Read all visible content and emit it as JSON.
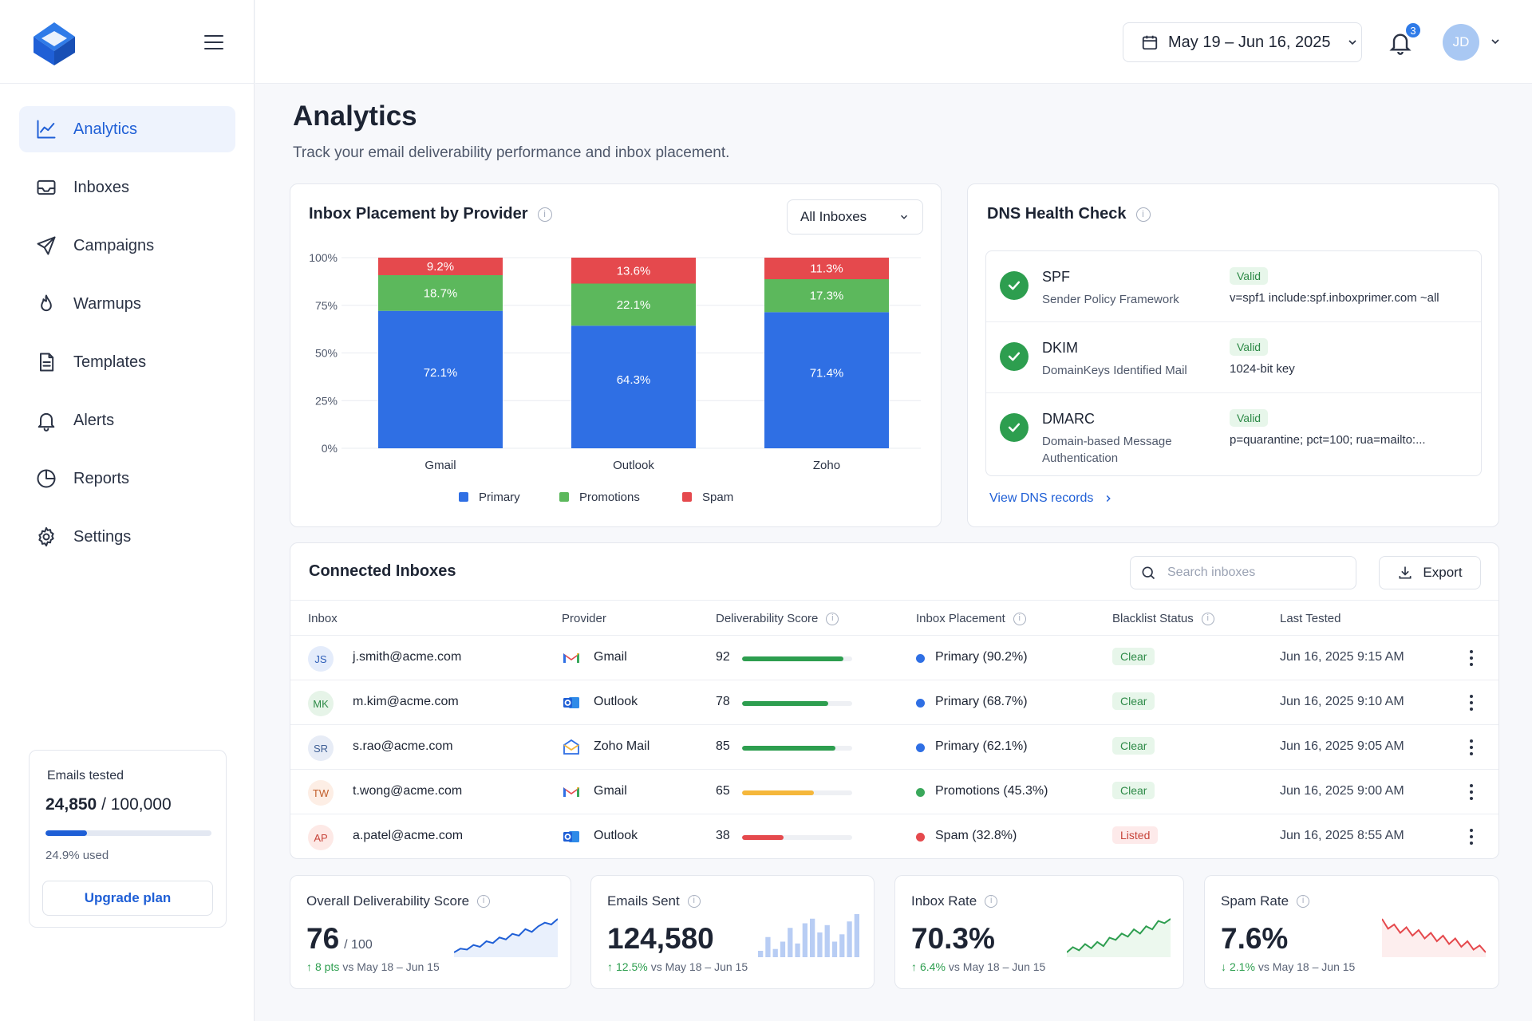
{
  "sidebar": {
    "items": [
      {
        "label": "Analytics",
        "icon": "chart-line-icon",
        "active": true
      },
      {
        "label": "Inboxes",
        "icon": "inbox-icon"
      },
      {
        "label": "Campaigns",
        "icon": "send-icon"
      },
      {
        "label": "Warmups",
        "icon": "flame-icon"
      },
      {
        "label": "Templates",
        "icon": "document-icon"
      },
      {
        "label": "Alerts",
        "icon": "bell-icon"
      },
      {
        "label": "Reports",
        "icon": "pie-chart-icon"
      },
      {
        "label": "Settings",
        "icon": "gear-icon"
      }
    ],
    "usage": {
      "label": "Emails tested",
      "used": "24,850",
      "total": "/ 100,000",
      "fraction": 0.249,
      "pct_text": "24.9% used",
      "upgrade_label": "Upgrade plan"
    }
  },
  "header": {
    "date_range": "May 19 – Jun 16, 2025",
    "notifications": "3",
    "avatar_initials": "JD"
  },
  "page": {
    "title": "Analytics",
    "subtitle": "Track your email deliverability performance and inbox placement."
  },
  "placement": {
    "title": "Inbox Placement by Provider",
    "filter": "All Inboxes"
  },
  "chart_data": {
    "type": "bar",
    "stacked": true,
    "categories": [
      "Gmail",
      "Outlook",
      "Zoho"
    ],
    "series": [
      {
        "name": "Primary",
        "values": [
          72.1,
          64.3,
          71.4
        ],
        "color": "#2f6fe4"
      },
      {
        "name": "Promotions",
        "values": [
          18.7,
          22.1,
          17.3
        ],
        "color": "#5cb85c"
      },
      {
        "name": "Spam",
        "values": [
          9.2,
          13.6,
          11.3
        ],
        "color": "#e5494d"
      }
    ],
    "yticks": [
      "0%",
      "25%",
      "50%",
      "75%",
      "100%"
    ],
    "ylim": [
      0,
      100
    ],
    "legend": "bottom",
    "grid": true
  },
  "dns": {
    "title": "DNS Health Check",
    "records": [
      {
        "name": "SPF",
        "desc": "Sender Policy Framework",
        "status": "Valid",
        "value": "v=spf1 include:spf.inboxprimer.com ~all"
      },
      {
        "name": "DKIM",
        "desc": "DomainKeys Identified Mail",
        "status": "Valid",
        "value": "1024-bit key"
      },
      {
        "name": "DMARC",
        "desc": "Domain-based Message Authentication",
        "status": "Valid",
        "value": "p=quarantine; pct=100; rua=mailto:..."
      }
    ],
    "link": "View DNS records"
  },
  "inboxes": {
    "title": "Connected Inboxes",
    "search_placeholder": "Search inboxes",
    "export_label": "Export",
    "columns": [
      "Inbox",
      "Provider",
      "Deliverability Score",
      "Inbox Placement",
      "Blacklist Status",
      "Last Tested"
    ],
    "rows": [
      {
        "initials": "JS",
        "email": "j.smith@acme.com",
        "provider": "Gmail",
        "score": 92,
        "placement": "Primary (90.2%)",
        "placement_color": "#2f6fe4",
        "status": "Clear",
        "tested": "Jun 16, 2025 9:15 AM",
        "avatar_bg": "#e4ecfb",
        "avatar_fg": "#2f5fb8",
        "bar_color": "#2d9e4f"
      },
      {
        "initials": "MK",
        "email": "m.kim@acme.com",
        "provider": "Outlook",
        "score": 78,
        "placement": "Primary (68.7%)",
        "placement_color": "#2f6fe4",
        "status": "Clear",
        "tested": "Jun 16, 2025 9:10 AM",
        "avatar_bg": "#e6f4e8",
        "avatar_fg": "#2d8a47",
        "bar_color": "#2d9e4f"
      },
      {
        "initials": "SR",
        "email": "s.rao@acme.com",
        "provider": "Zoho Mail",
        "score": 85,
        "placement": "Primary (62.1%)",
        "placement_color": "#2f6fe4",
        "status": "Clear",
        "tested": "Jun 16, 2025 9:05 AM",
        "avatar_bg": "#e7ecf6",
        "avatar_fg": "#3f5f95",
        "bar_color": "#2d9e4f"
      },
      {
        "initials": "TW",
        "email": "t.wong@acme.com",
        "provider": "Gmail",
        "score": 65,
        "placement": "Promotions (45.3%)",
        "placement_color": "#3aa85b",
        "status": "Clear",
        "tested": "Jun 16, 2025 9:00 AM",
        "avatar_bg": "#fdeee5",
        "avatar_fg": "#c25f2c",
        "bar_color": "#f5b73b"
      },
      {
        "initials": "AP",
        "email": "a.patel@acme.com",
        "provider": "Outlook",
        "score": 38,
        "placement": "Spam (32.8%)",
        "placement_color": "#e5494d",
        "status": "Listed",
        "tested": "Jun 16, 2025 8:55 AM",
        "avatar_bg": "#fde9e6",
        "avatar_fg": "#c7443a",
        "bar_color": "#e5494d"
      }
    ]
  },
  "stats": [
    {
      "title": "Overall Deliverability Score",
      "value": "76",
      "unit": "/ 100",
      "delta": "8 pts",
      "period": "vs May 18 – Jun 15",
      "direction": "up",
      "spark": [
        30,
        34,
        33,
        38,
        36,
        42,
        40,
        46,
        44,
        50,
        48,
        55,
        52,
        58,
        62,
        60,
        66
      ]
    },
    {
      "title": "Emails Sent",
      "value": "124,580",
      "unit": "",
      "delta": "12.5%",
      "period": "vs May 18 – Jun 15",
      "direction": "up",
      "spark": [
        20,
        35,
        22,
        30,
        45,
        28,
        50,
        55,
        40,
        48,
        30,
        38,
        52,
        60
      ]
    },
    {
      "title": "Inbox Rate",
      "value": "70.3%",
      "unit": "",
      "delta": "6.4%",
      "period": "vs May 18 – Jun 15",
      "direction": "up",
      "spark": [
        30,
        35,
        32,
        38,
        34,
        40,
        36,
        44,
        42,
        48,
        45,
        52,
        48,
        55,
        52,
        60,
        58,
        62
      ]
    },
    {
      "title": "Spam Rate",
      "value": "7.6%",
      "unit": "",
      "delta": "2.1%",
      "period": "vs May 18 – Jun 15",
      "direction": "down",
      "spark": [
        62,
        55,
        58,
        52,
        56,
        50,
        54,
        48,
        52,
        46,
        50,
        44,
        48,
        42,
        46,
        40,
        43,
        38
      ]
    }
  ]
}
